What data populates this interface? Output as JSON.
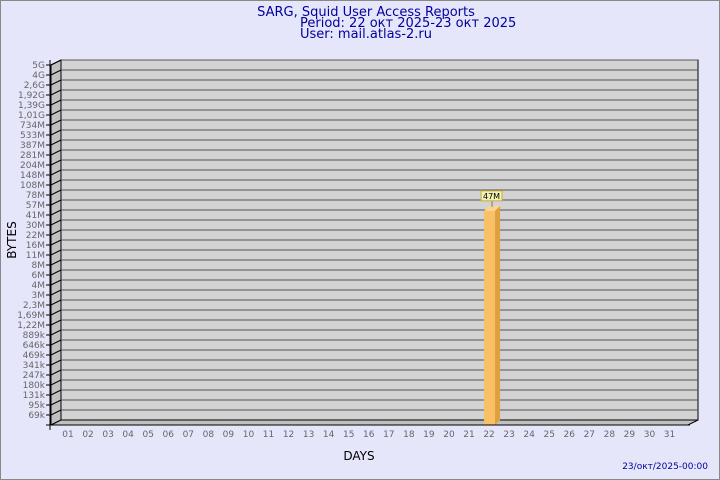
{
  "chart_data": {
    "type": "bar",
    "title": "SARG, Squid User Access Reports",
    "subtitle": "Period: 22 окт 2025-23 окт 2025",
    "user": "User: mail.atlas-2.ru",
    "xlabel": "DAYS",
    "ylabel": "BYTES",
    "y_scale": "log",
    "y_ticks": [
      "5G",
      "4G",
      "2,6G",
      "1,92G",
      "1,39G",
      "1,01G",
      "734M",
      "533M",
      "387M",
      "281M",
      "204M",
      "148M",
      "108M",
      "78M",
      "57M",
      "41M",
      "30M",
      "22M",
      "16M",
      "11M",
      "8M",
      "6M",
      "4M",
      "3M",
      "2,3M",
      "1,69M",
      "1,22M",
      "889k",
      "646k",
      "469k",
      "341k",
      "247k",
      "180k",
      "131k",
      "95k",
      "69k"
    ],
    "categories": [
      "01",
      "02",
      "03",
      "04",
      "05",
      "06",
      "07",
      "08",
      "09",
      "10",
      "11",
      "12",
      "13",
      "14",
      "15",
      "16",
      "17",
      "18",
      "19",
      "20",
      "21",
      "22",
      "23",
      "24",
      "25",
      "26",
      "27",
      "28",
      "29",
      "30",
      "31"
    ],
    "bars": [
      {
        "day": "22",
        "value_mb": 47,
        "label": "47M"
      }
    ],
    "bar_color": "#f9c066",
    "grid": true,
    "footer": "23/окт/2025-00:00"
  }
}
